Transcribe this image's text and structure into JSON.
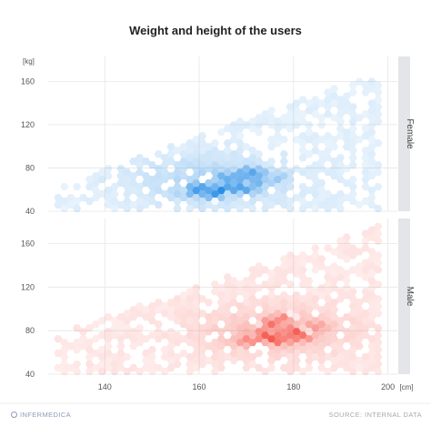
{
  "chart_data": {
    "type": "heatmap",
    "subtype": "hexbin",
    "title": "Weight and height of the users",
    "x_unit": "[cm]",
    "y_unit": "[kg]",
    "xlim": [
      128,
      202
    ],
    "ylim": [
      40,
      183
    ],
    "x_ticks": [
      140,
      160,
      180,
      200
    ],
    "y_ticks": [
      40,
      80,
      120,
      160
    ],
    "grid": true,
    "facets": [
      {
        "name": "Female",
        "color": "#1e88e5",
        "clusters": [
          {
            "x": 171,
            "y": 76,
            "intensity": 1.0
          },
          {
            "x": 165,
            "y": 60,
            "intensity": 0.8
          },
          {
            "x": 168,
            "y": 66,
            "intensity": 0.75
          },
          {
            "x": 163,
            "y": 55,
            "intensity": 0.7
          },
          {
            "x": 170,
            "y": 60,
            "intensity": 0.65
          },
          {
            "x": 160,
            "y": 62,
            "intensity": 0.6
          },
          {
            "x": 173,
            "y": 68,
            "intensity": 0.55
          },
          {
            "x": 166,
            "y": 72,
            "intensity": 0.5
          },
          {
            "x": 158,
            "y": 58,
            "intensity": 0.45
          },
          {
            "x": 176,
            "y": 72,
            "intensity": 0.4
          }
        ]
      },
      {
        "name": "Male",
        "color": "#f44336",
        "clusters": [
          {
            "x": 177,
            "y": 72,
            "intensity": 1.0
          },
          {
            "x": 173,
            "y": 76,
            "intensity": 0.75
          },
          {
            "x": 180,
            "y": 80,
            "intensity": 0.7
          },
          {
            "x": 175,
            "y": 86,
            "intensity": 0.6
          },
          {
            "x": 182,
            "y": 74,
            "intensity": 0.55
          },
          {
            "x": 170,
            "y": 70,
            "intensity": 0.5
          },
          {
            "x": 178,
            "y": 92,
            "intensity": 0.45
          },
          {
            "x": 185,
            "y": 84,
            "intensity": 0.4
          }
        ]
      }
    ]
  },
  "footer": {
    "brand": "INFERMEDICA",
    "source": "SOURCE: INTERNAL DATA"
  }
}
